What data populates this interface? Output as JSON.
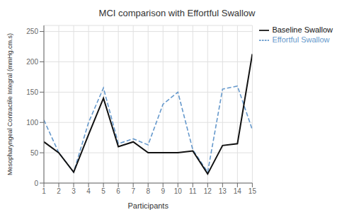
{
  "chart_data": {
    "type": "line",
    "title": "MCI comparison with Effortful Swallow",
    "xlabel": "Participants",
    "ylabel": "Mesopharyngeal Contractile Integral (mmHg.cm.s)",
    "x": [
      1,
      2,
      3,
      4,
      5,
      6,
      7,
      8,
      9,
      10,
      11,
      12,
      13,
      14,
      15
    ],
    "series": [
      {
        "name": "Effortful Swallow",
        "color": "#6699cc",
        "line_style": "dashed",
        "values": [
          104,
          50,
          18,
          100,
          157,
          65,
          73,
          63,
          130,
          150,
          55,
          18,
          155,
          160,
          88
        ]
      },
      {
        "name": "Baseline Swallow",
        "color": "#111111",
        "line_style": "solid",
        "values": [
          68,
          50,
          18,
          80,
          140,
          60,
          68,
          50,
          50,
          50,
          53,
          15,
          62,
          65,
          213
        ]
      }
    ],
    "xlim": [
      1,
      15
    ],
    "xticks": [
      1,
      2,
      3,
      4,
      5,
      6,
      7,
      8,
      9,
      10,
      11,
      12,
      13,
      14,
      15
    ],
    "ylim": [
      0,
      260
    ],
    "yticks": [
      0,
      50,
      100,
      150,
      200,
      250
    ],
    "grid": true,
    "legend": "right"
  }
}
